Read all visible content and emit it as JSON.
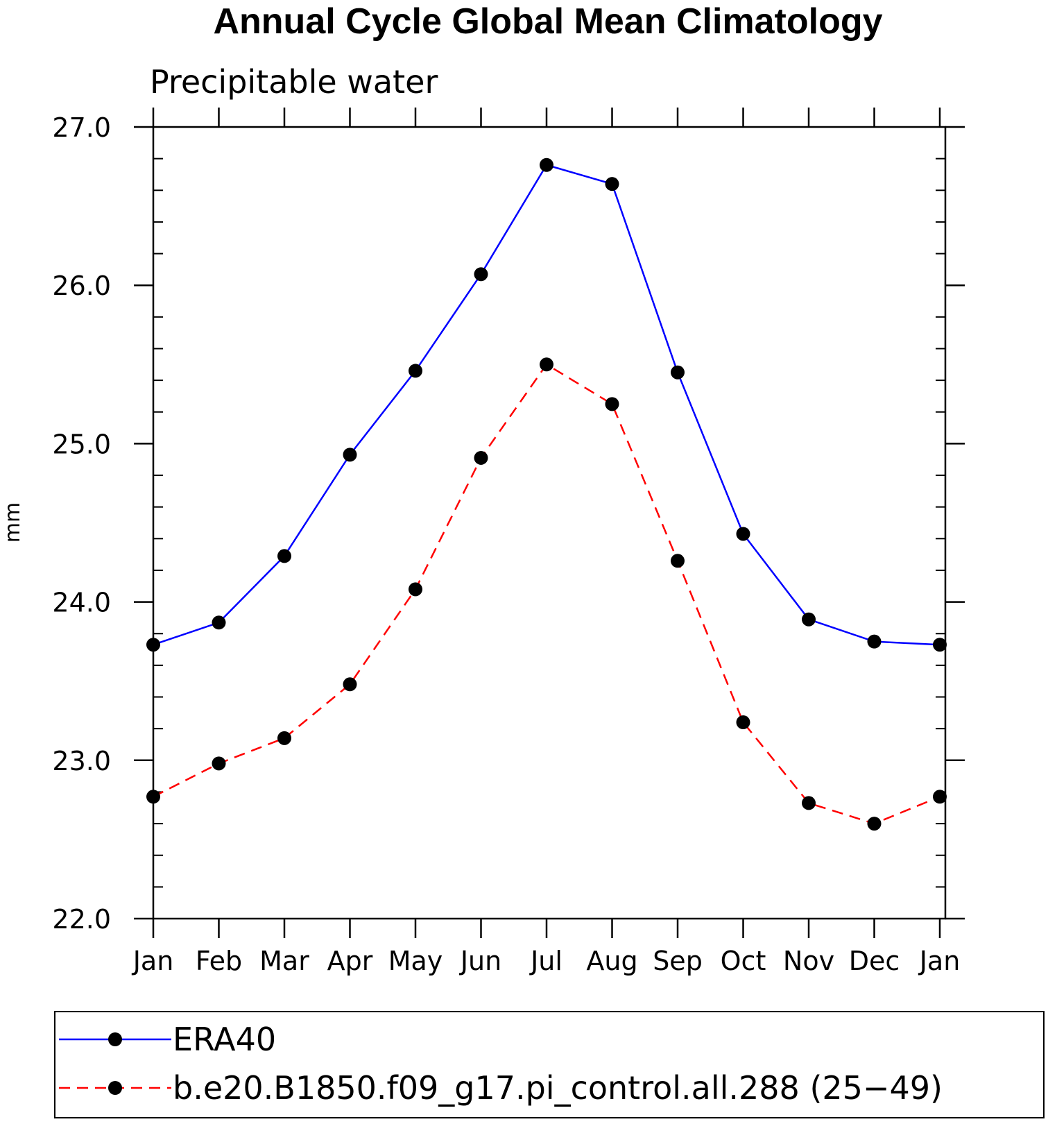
{
  "chart_data": {
    "type": "line",
    "title": "Annual Cycle Global Mean Climatology",
    "subtitle": "Precipitable water",
    "ylabel": "mm",
    "xlabel": "",
    "categories": [
      "Jan",
      "Feb",
      "Mar",
      "Apr",
      "May",
      "Jun",
      "Jul",
      "Aug",
      "Sep",
      "Oct",
      "Nov",
      "Dec",
      "Jan"
    ],
    "ylim": [
      22.0,
      27.0
    ],
    "yticks": [
      "22.0",
      "23.0",
      "24.0",
      "25.0",
      "26.0",
      "27.0"
    ],
    "y_minor_step": 0.2,
    "grid": false,
    "legend_position": "bottom",
    "series": [
      {
        "name": "ERA40",
        "color": "#0000ff",
        "dash": "solid",
        "marker": "filled-circle",
        "values": [
          23.73,
          23.87,
          24.29,
          24.93,
          25.46,
          26.07,
          26.76,
          26.64,
          25.45,
          24.43,
          23.89,
          23.75,
          23.73
        ]
      },
      {
        "name": "b.e20.B1850.f09_g17.pi_control.all.288 (25−49)",
        "color": "#ff0000",
        "dash": "dashed",
        "marker": "filled-circle",
        "values": [
          22.77,
          22.98,
          23.14,
          23.48,
          24.08,
          24.91,
          25.5,
          25.25,
          24.26,
          23.24,
          22.73,
          22.6,
          22.77
        ]
      }
    ]
  }
}
